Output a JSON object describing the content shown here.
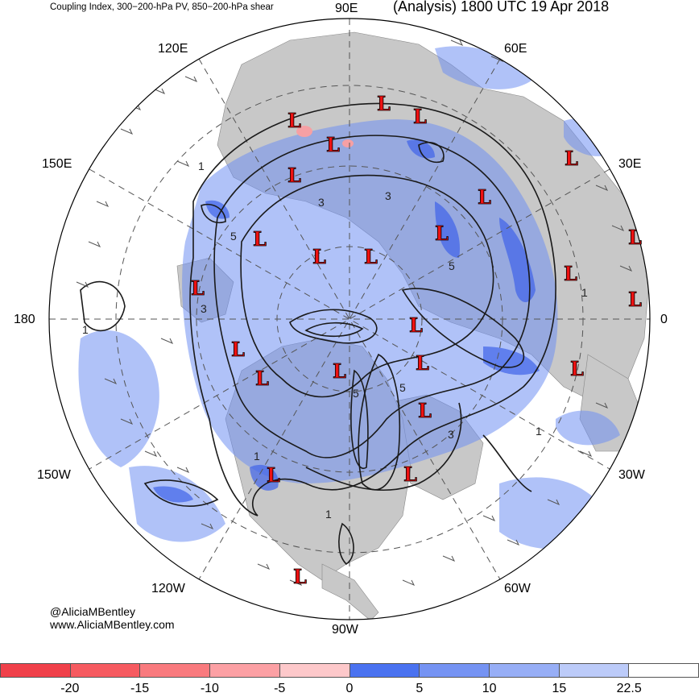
{
  "title_left": "Coupling Index, 300−200-hPa PV, 850−200-hPa shear",
  "title_right": "(Analysis) 1800 UTC 19 Apr 2018",
  "longitude_labels": {
    "e90": "90E",
    "e120": "120E",
    "e60": "60E",
    "e150": "150E",
    "e30": "30E",
    "d180": "180",
    "zero": "0",
    "w150": "150W",
    "w30": "30W",
    "w120": "120W",
    "w60": "60W",
    "w90": "90W"
  },
  "credits": {
    "twitter": "@AliciaMBentley",
    "website": "www.AliciaMBentley.com"
  },
  "colorbar": {
    "colors": [
      "#f0404a",
      "#f65a60",
      "#f97a7e",
      "#fca0a4",
      "#fdc8ca",
      "#4a72f0",
      "#7593f3",
      "#97aef6",
      "#bccbf9",
      "#ffffff"
    ],
    "tick_labels": [
      "-20",
      "-15",
      "-10",
      "-5",
      "0",
      "5",
      "10",
      "15",
      "22.5"
    ]
  },
  "low_marker": "L",
  "contour_labels": [
    "1",
    "3",
    "5"
  ],
  "colors": {
    "land": "#c8c8c8",
    "ocean": "#ffffff",
    "low_marker": "#ee1111",
    "contour": "#1a1a1a",
    "shading": "#6f8ff2"
  }
}
